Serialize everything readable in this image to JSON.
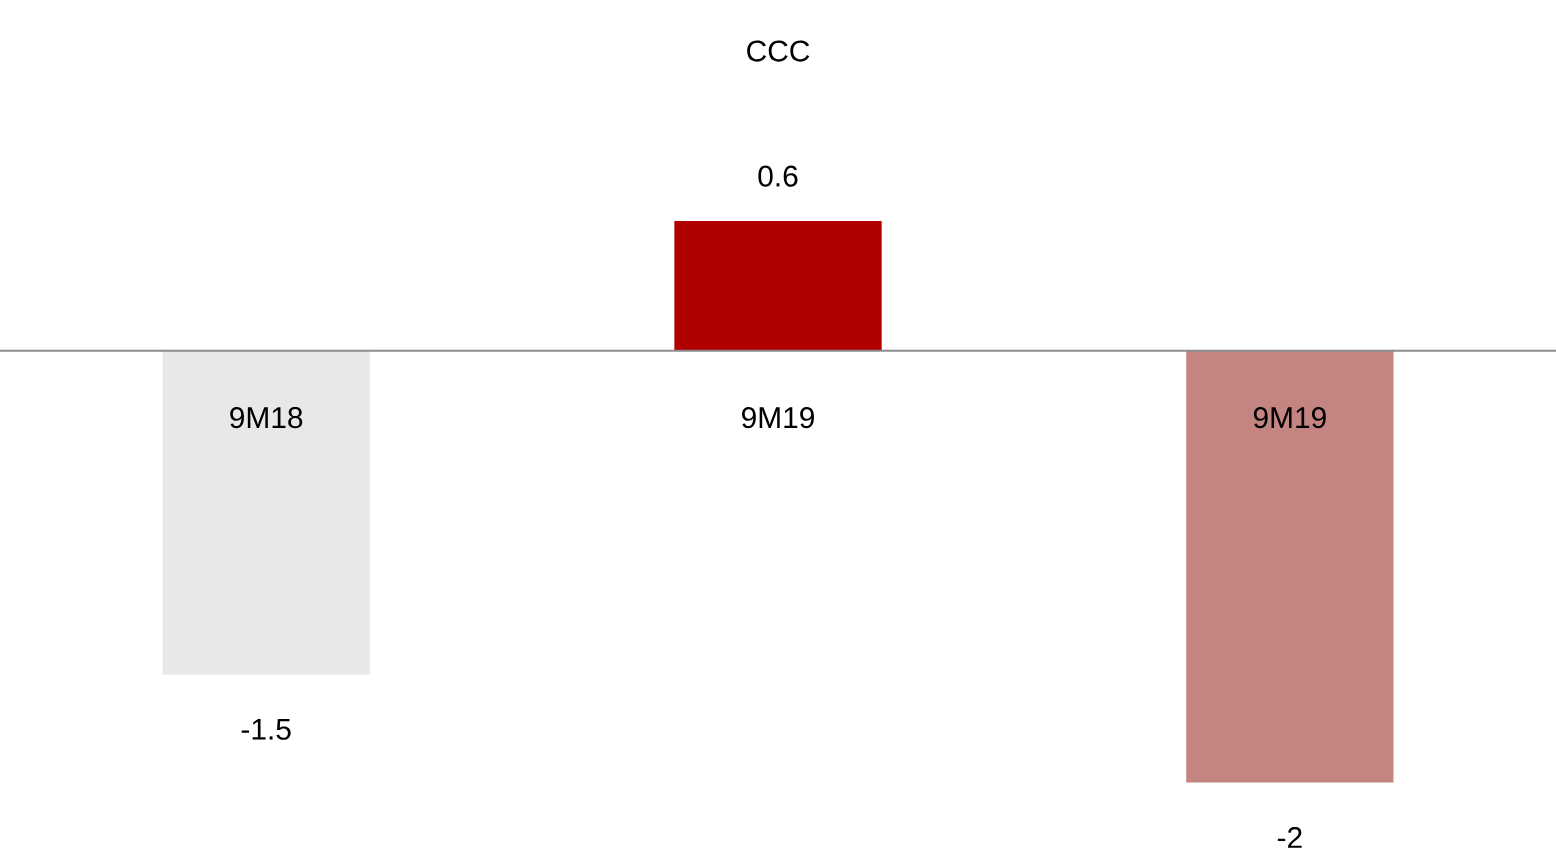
{
  "chart_data": {
    "type": "bar",
    "title": "CCC",
    "categories": [
      "9M18",
      "9M19",
      "9M19"
    ],
    "values": [
      -1.5,
      0.6,
      -2
    ],
    "colors": [
      "#e8e8e8",
      "#b00000",
      "#c48482"
    ],
    "data_labels": true
  }
}
